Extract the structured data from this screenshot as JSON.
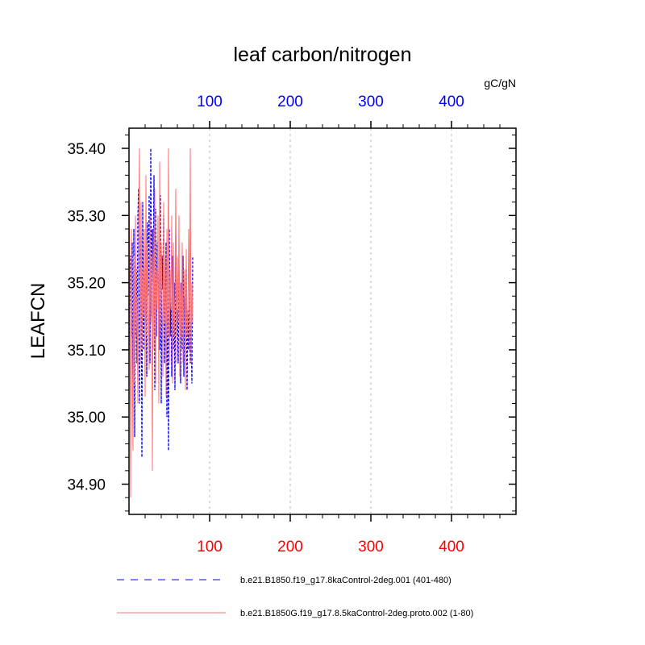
{
  "chart_data": {
    "type": "line",
    "title": "leaf carbon/nitrogen",
    "units": "gC/gN",
    "ylabel": "LEAFCN",
    "xlabel": "",
    "xlim": [
      0,
      480
    ],
    "ylim": [
      34.855,
      35.43
    ],
    "x_ticks": [
      100,
      200,
      300,
      400
    ],
    "y_ticks": [
      34.9,
      35.0,
      35.1,
      35.2,
      35.3,
      35.4
    ],
    "y_tick_labels": [
      "34.90",
      "35.00",
      "35.10",
      "35.20",
      "35.30",
      "35.40"
    ],
    "grid": "vertical dotted at x ticks",
    "top_axis_color": "#0000ff",
    "bottom_axis_color": "#ff0000",
    "legend": "bottom",
    "series": [
      {
        "name": "b.e21.B1850.f19_g17.8kaControl-2deg.001 (401-480)",
        "color": "#0000ff",
        "dash": "dashed",
        "values": [
          35.1,
          35.16,
          35.24,
          35.12,
          35.26,
          35.05,
          35.28,
          34.97,
          35.15,
          35.22,
          35.08,
          35.3,
          35.34,
          35.02,
          35.18,
          35.27,
          34.94,
          35.32,
          35.1,
          35.22,
          35.14,
          35.25,
          35.06,
          35.29,
          35.18,
          35.33,
          35.08,
          35.4,
          35.15,
          35.28,
          35.2,
          35.36,
          35.04,
          35.31,
          35.12,
          35.26,
          35.22,
          35.18,
          35.1,
          35.33,
          35.02,
          35.24,
          35.19,
          35.3,
          35.08,
          35.14,
          35.26,
          35.0,
          35.22,
          34.95,
          35.28,
          35.12,
          35.18,
          35.06,
          35.24,
          35.1,
          35.2,
          35.04,
          35.27,
          35.12,
          35.16,
          35.08,
          35.22,
          35.14,
          35.05,
          35.2,
          35.1,
          35.24,
          35.06,
          35.18,
          35.12,
          35.22,
          35.04,
          35.16,
          35.1,
          35.2,
          35.08,
          35.14,
          35.05,
          35.24
        ]
      },
      {
        "name": "b.e21.B1850G.f19_g17.8.5kaControl-2deg.proto.002 (1-80)",
        "color": "#ff7070",
        "dash": "solid",
        "values": [
          35.34,
          35.22,
          34.88,
          35.28,
          35.1,
          34.95,
          35.24,
          35.05,
          35.3,
          35.12,
          35.18,
          35.02,
          35.26,
          35.4,
          35.08,
          35.32,
          35.1,
          35.22,
          35.15,
          35.28,
          35.03,
          35.36,
          35.12,
          35.26,
          35.18,
          35.07,
          35.3,
          35.14,
          35.24,
          34.92,
          35.28,
          35.1,
          35.34,
          35.05,
          35.22,
          35.16,
          35.3,
          35.02,
          35.38,
          35.12,
          35.26,
          35.18,
          35.06,
          35.32,
          35.14,
          35.24,
          35.03,
          35.28,
          35.12,
          35.4,
          35.08,
          35.22,
          35.16,
          35.3,
          35.05,
          35.26,
          35.12,
          35.18,
          35.34,
          35.08,
          35.24,
          35.14,
          35.3,
          35.06,
          35.2,
          35.12,
          35.26,
          35.08,
          35.18,
          35.22,
          35.04,
          35.25,
          35.12,
          35.16,
          35.28,
          35.1,
          35.4,
          35.08,
          35.2,
          35.14
        ]
      }
    ]
  }
}
